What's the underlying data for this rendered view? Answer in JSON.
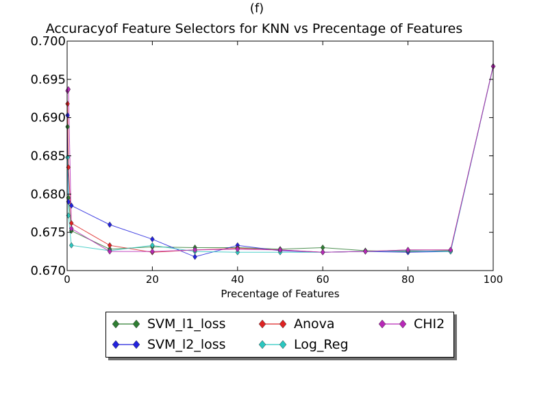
{
  "subplot_label": "(f)",
  "chart_data": {
    "type": "line",
    "title": "Accuracyof Feature Selectors for  KNN     vs Precentage of Features",
    "xlabel": "Precentage of Features",
    "ylabel": "",
    "xlim": [
      0,
      100
    ],
    "ylim": [
      0.67,
      0.7
    ],
    "xticks": [
      "0",
      "20",
      "40",
      "60",
      "80",
      "100"
    ],
    "yticks": [
      "0.670",
      "0.675",
      "0.680",
      "0.685",
      "0.690",
      "0.695",
      "0.700"
    ],
    "grid": false,
    "legend_position": "bottom-center (below plot)",
    "series": [
      {
        "name": "SVM_l1_loss",
        "color": "#2e7d32",
        "points": [
          [
            0.1,
            0.6888
          ],
          [
            0.3,
            0.6795
          ],
          [
            1,
            0.6752
          ],
          [
            10,
            0.6728
          ],
          [
            20,
            0.6731
          ],
          [
            30,
            0.673
          ],
          [
            40,
            0.673
          ],
          [
            50,
            0.6728
          ],
          [
            60,
            0.673
          ],
          [
            70,
            0.6726
          ],
          [
            80,
            0.6725
          ],
          [
            90,
            0.6726
          ],
          [
            100,
            0.6967
          ]
        ]
      },
      {
        "name": "SVM_l2_loss",
        "color": "#2222dd",
        "points": [
          [
            0.1,
            0.6903
          ],
          [
            0.3,
            0.679
          ],
          [
            1,
            0.6785
          ],
          [
            10,
            0.676
          ],
          [
            20,
            0.6741
          ],
          [
            30,
            0.6718
          ],
          [
            40,
            0.6733
          ],
          [
            50,
            0.6726
          ],
          [
            60,
            0.6724
          ],
          [
            70,
            0.6725
          ],
          [
            80,
            0.6724
          ],
          [
            90,
            0.6725
          ],
          [
            100,
            0.6967
          ]
        ]
      },
      {
        "name": "Anova",
        "color": "#dd2222",
        "points": [
          [
            0.1,
            0.6918
          ],
          [
            0.3,
            0.6835
          ],
          [
            1,
            0.6762
          ],
          [
            10,
            0.6733
          ],
          [
            20,
            0.6724
          ],
          [
            30,
            0.6727
          ],
          [
            40,
            0.6729
          ],
          [
            50,
            0.6727
          ],
          [
            60,
            0.6724
          ],
          [
            70,
            0.6725
          ],
          [
            80,
            0.6727
          ],
          [
            90,
            0.6727
          ],
          [
            100,
            0.6967
          ]
        ]
      },
      {
        "name": "Log_Reg",
        "color": "#2bc7c0",
        "points": [
          [
            0.1,
            0.6848
          ],
          [
            0.3,
            0.6772
          ],
          [
            1,
            0.6733
          ],
          [
            10,
            0.6726
          ],
          [
            20,
            0.6733
          ],
          [
            30,
            0.6725
          ],
          [
            40,
            0.6724
          ],
          [
            50,
            0.6724
          ],
          [
            60,
            0.6724
          ],
          [
            70,
            0.6725
          ],
          [
            80,
            0.6726
          ],
          [
            90,
            0.6725
          ],
          [
            100,
            0.6967
          ]
        ]
      },
      {
        "name": "CHI2",
        "color": "#b728b7",
        "points": [
          [
            0.1,
            0.6935
          ],
          [
            0.3,
            0.6937
          ],
          [
            1,
            0.6755
          ],
          [
            10,
            0.6725
          ],
          [
            20,
            0.6725
          ],
          [
            30,
            0.6727
          ],
          [
            40,
            0.6728
          ],
          [
            50,
            0.6727
          ],
          [
            60,
            0.6724
          ],
          [
            70,
            0.6725
          ],
          [
            80,
            0.6727
          ],
          [
            90,
            0.6727
          ],
          [
            100,
            0.6967
          ]
        ]
      }
    ]
  }
}
